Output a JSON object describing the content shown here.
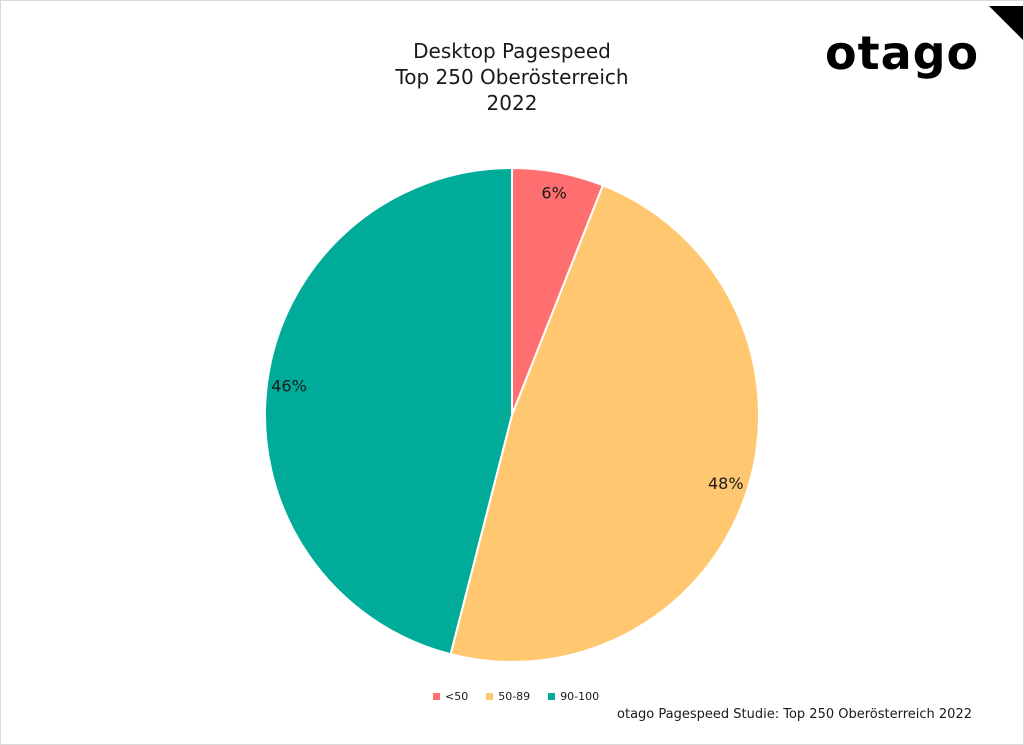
{
  "logo": {
    "text": "otago"
  },
  "source": "otago Pagespeed Studie: Top 250 Oberösterreich 2022",
  "chart_data": {
    "type": "pie",
    "title": [
      "Desktop Pagespeed",
      "Top 250 Oberösterreich",
      "2022"
    ],
    "slices": [
      {
        "label": "<50",
        "value": 6,
        "display": "6%",
        "color": "#FF6F6F"
      },
      {
        "label": "50-89",
        "value": 48,
        "display": "48%",
        "color": "#FFC870"
      },
      {
        "label": "90-100",
        "value": 46,
        "display": "46%",
        "color": "#00AC99"
      }
    ],
    "legend_position": "bottom"
  }
}
